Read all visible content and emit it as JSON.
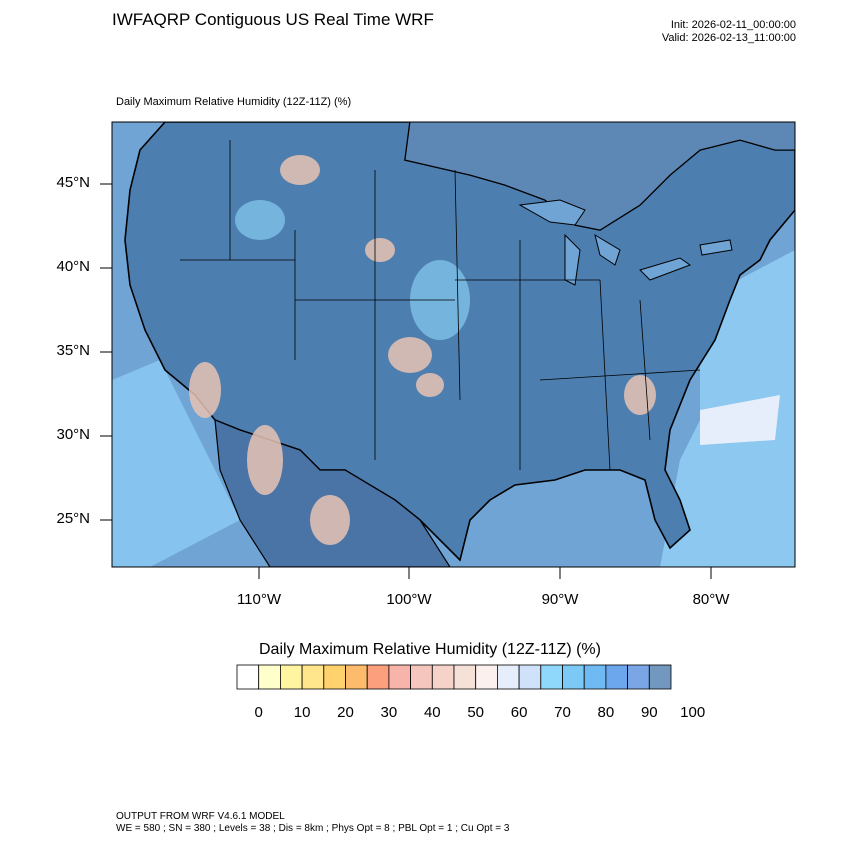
{
  "header": {
    "title": "IWFAQRP Contiguous US Real Time WRF",
    "init": "Init: 2026-02-11_00:00:00",
    "valid": "Valid: 2026-02-13_11:00:00"
  },
  "map": {
    "subtitle": "Daily Maximum Relative Humidity (12Z-11Z)   (%)",
    "lat_labels": [
      "45°N",
      "40°N",
      "35°N",
      "30°N",
      "25°N"
    ],
    "lon_labels": [
      "110°W",
      "100°W",
      "90°W",
      "80°W"
    ],
    "ocean_color": "#6fa4d4",
    "land_color": "#4d7eb0"
  },
  "colorbar": {
    "title": "Daily Maximum Relative Humidity (12Z-11Z)  (%)",
    "colors": [
      "#ffffff",
      "#ffffcc",
      "#fff5a0",
      "#ffe68c",
      "#ffd26e",
      "#fdbb6b",
      "#fb9f7c",
      "#f6b4ab",
      "#f5c6bd",
      "#f6d3c9",
      "#f6e1d9",
      "#fbf0ee",
      "#e6eefb",
      "#cfe2fa",
      "#8fd8fb",
      "#7cc9f5",
      "#6fbaf2",
      "#6ca7ee",
      "#7aa6e6",
      "#7298bf"
    ],
    "labels": [
      "0",
      "10",
      "20",
      "30",
      "40",
      "50",
      "60",
      "70",
      "80",
      "90",
      "100"
    ]
  },
  "footer": {
    "line1": "OUTPUT FROM WRF V4.6.1 MODEL",
    "line2": "WE = 580 ; SN = 380 ; Levels = 38 ; Dis = 8km ; Phys Opt = 8 ; PBL Opt = 1 ; Cu Opt = 3"
  }
}
